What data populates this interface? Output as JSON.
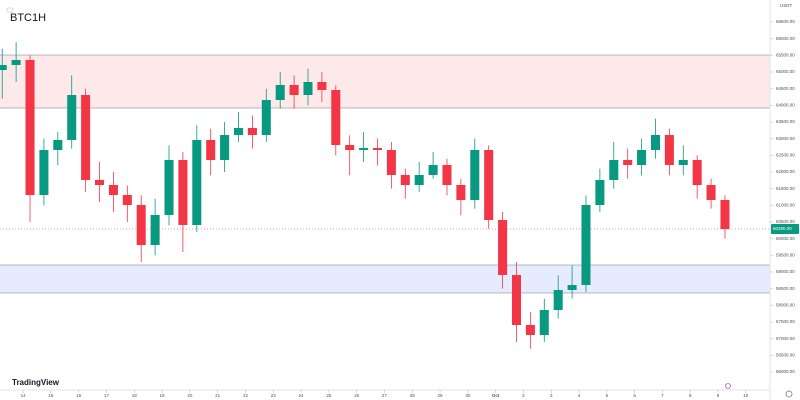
{
  "chart_data": {
    "type": "candlestick",
    "title": "BTC1H",
    "y_unit": "USDT",
    "watermark": "TradingView",
    "up_color": "#089981",
    "down_color": "#f23645",
    "x": [
      -0.75,
      -0.25,
      0.25,
      0.75,
      1.25,
      1.75,
      2.25,
      2.75,
      3.25,
      3.75,
      4.25,
      4.75,
      5.25,
      5.75,
      6.25,
      6.75,
      7.25,
      7.75,
      8.25,
      8.75,
      9.25,
      9.75,
      10.25,
      10.75,
      11.25,
      11.75,
      12.25,
      12.75,
      13.25,
      13.75,
      14.25,
      14.75,
      15.25,
      15.75,
      16.25,
      16.75,
      17.25,
      17.75,
      18.25,
      18.75,
      19.25,
      19.75,
      20.25,
      20.75,
      21.25,
      21.75,
      22.25,
      22.75,
      23.25,
      23.75,
      24.25,
      24.75,
      25.25
    ],
    "open": [
      65060,
      65210,
      65360,
      61310,
      62660,
      62960,
      64310,
      61760,
      61610,
      61310,
      61010,
      59810,
      60710,
      62360,
      60410,
      62960,
      62360,
      63110,
      63320,
      63110,
      64160,
      64610,
      64310,
      64700,
      64460,
      62810,
      62660,
      62720,
      62660,
      61910,
      61610,
      61910,
      62210,
      61610,
      61160,
      62660,
      60560,
      58910,
      57410,
      57110,
      57860,
      58460,
      58610,
      61010,
      61760,
      62360,
      62210,
      62660,
      63110,
      62210,
      62360,
      61610,
      61160
    ],
    "close": [
      65210,
      65360,
      61310,
      62660,
      62960,
      64310,
      61760,
      61610,
      61310,
      61010,
      59810,
      60710,
      62360,
      60410,
      62960,
      62360,
      63110,
      63320,
      63110,
      64160,
      64610,
      64310,
      64700,
      64460,
      62810,
      62660,
      62720,
      62660,
      61910,
      61610,
      61910,
      62210,
      61610,
      61160,
      62660,
      60560,
      58910,
      57410,
      57110,
      57860,
      58460,
      58610,
      61010,
      61760,
      62360,
      62210,
      62660,
      63110,
      62210,
      62360,
      61610,
      61160,
      60290
    ],
    "high": [
      65700,
      65900,
      65500,
      63000,
      63200,
      64900,
      64500,
      62300,
      62000,
      61600,
      61300,
      61200,
      62800,
      62600,
      63400,
      63300,
      63500,
      63800,
      63700,
      64500,
      65000,
      64900,
      65100,
      65000,
      64600,
      63100,
      63200,
      63000,
      62900,
      62100,
      62300,
      62600,
      62400,
      61800,
      63000,
      62800,
      60800,
      59300,
      57800,
      58200,
      58900,
      59200,
      61300,
      62100,
      62900,
      62700,
      63000,
      63600,
      63300,
      62800,
      62500,
      61800,
      61300
    ],
    "low": [
      64200,
      64700,
      60500,
      61000,
      62200,
      62700,
      61400,
      61100,
      60800,
      60500,
      59300,
      59500,
      60400,
      59600,
      60200,
      61900,
      62000,
      62900,
      62700,
      62900,
      63900,
      63900,
      64000,
      64100,
      62500,
      61900,
      62300,
      62200,
      61500,
      61200,
      61400,
      61800,
      61300,
      60700,
      60900,
      60300,
      58500,
      56900,
      56700,
      56900,
      57600,
      58200,
      58400,
      60800,
      61500,
      61800,
      61900,
      62400,
      61900,
      61900,
      61200,
      60900,
      60000
    ],
    "zones": [
      {
        "from": 63920,
        "to": 65510,
        "color": "#fde8ea"
      },
      {
        "from": 58370,
        "to": 59210,
        "color": "#e6ebfd"
      }
    ],
    "last_price_label": "60290.00",
    "xlim": [
      -0.83,
      26.87
    ],
    "ylim": [
      55460,
      67160
    ],
    "xticks": [
      {
        "value": 0,
        "label": "14"
      },
      {
        "value": 1,
        "label": "15"
      },
      {
        "value": 2,
        "label": "16"
      },
      {
        "value": 3,
        "label": "17"
      },
      {
        "value": 4,
        "label": "18"
      },
      {
        "value": 5,
        "label": "19"
      },
      {
        "value": 6,
        "label": "20"
      },
      {
        "value": 7,
        "label": "21"
      },
      {
        "value": 8,
        "label": "22"
      },
      {
        "value": 9,
        "label": "23"
      },
      {
        "value": 10,
        "label": "24"
      },
      {
        "value": 11,
        "label": "25"
      },
      {
        "value": 12,
        "label": "26"
      },
      {
        "value": 13,
        "label": "27"
      },
      {
        "value": 14,
        "label": "28"
      },
      {
        "value": 15,
        "label": "29"
      },
      {
        "value": 16,
        "label": "30"
      },
      {
        "value": 17,
        "label": "Oct"
      },
      {
        "value": 18,
        "label": "2"
      },
      {
        "value": 19,
        "label": "3"
      },
      {
        "value": 20,
        "label": "4"
      },
      {
        "value": 21,
        "label": "5"
      },
      {
        "value": 22,
        "label": "6"
      },
      {
        "value": 23,
        "label": "7"
      },
      {
        "value": 24,
        "label": "8"
      },
      {
        "value": 25,
        "label": "9"
      },
      {
        "value": 26,
        "label": "10"
      }
    ],
    "yticks": [
      {
        "value": 66500,
        "label": "66500.00"
      },
      {
        "value": 66000,
        "label": "66000.00"
      },
      {
        "value": 65500,
        "label": "65500.00"
      },
      {
        "value": 65000,
        "label": "65000.00"
      },
      {
        "value": 64500,
        "label": "64500.00"
      },
      {
        "value": 64000,
        "label": "64000.00"
      },
      {
        "value": 63500,
        "label": "63500.00"
      },
      {
        "value": 63000,
        "label": "63000.00"
      },
      {
        "value": 62500,
        "label": "62500.00"
      },
      {
        "value": 62000,
        "label": "62000.00"
      },
      {
        "value": 61500,
        "label": "61500.00"
      },
      {
        "value": 61000,
        "label": "61000.00"
      },
      {
        "value": 60500,
        "label": "60500.00"
      },
      {
        "value": 60000,
        "label": "60000.00"
      },
      {
        "value": 59500,
        "label": "59500.00"
      },
      {
        "value": 59000,
        "label": "59000.00"
      },
      {
        "value": 58500,
        "label": "58500.00"
      },
      {
        "value": 58000,
        "label": "58000.00"
      },
      {
        "value": 57500,
        "label": "57500.00"
      },
      {
        "value": 57000,
        "label": "57000.00"
      },
      {
        "value": 56500,
        "label": "56500.00"
      },
      {
        "value": 56000,
        "label": "56000.00"
      }
    ]
  }
}
